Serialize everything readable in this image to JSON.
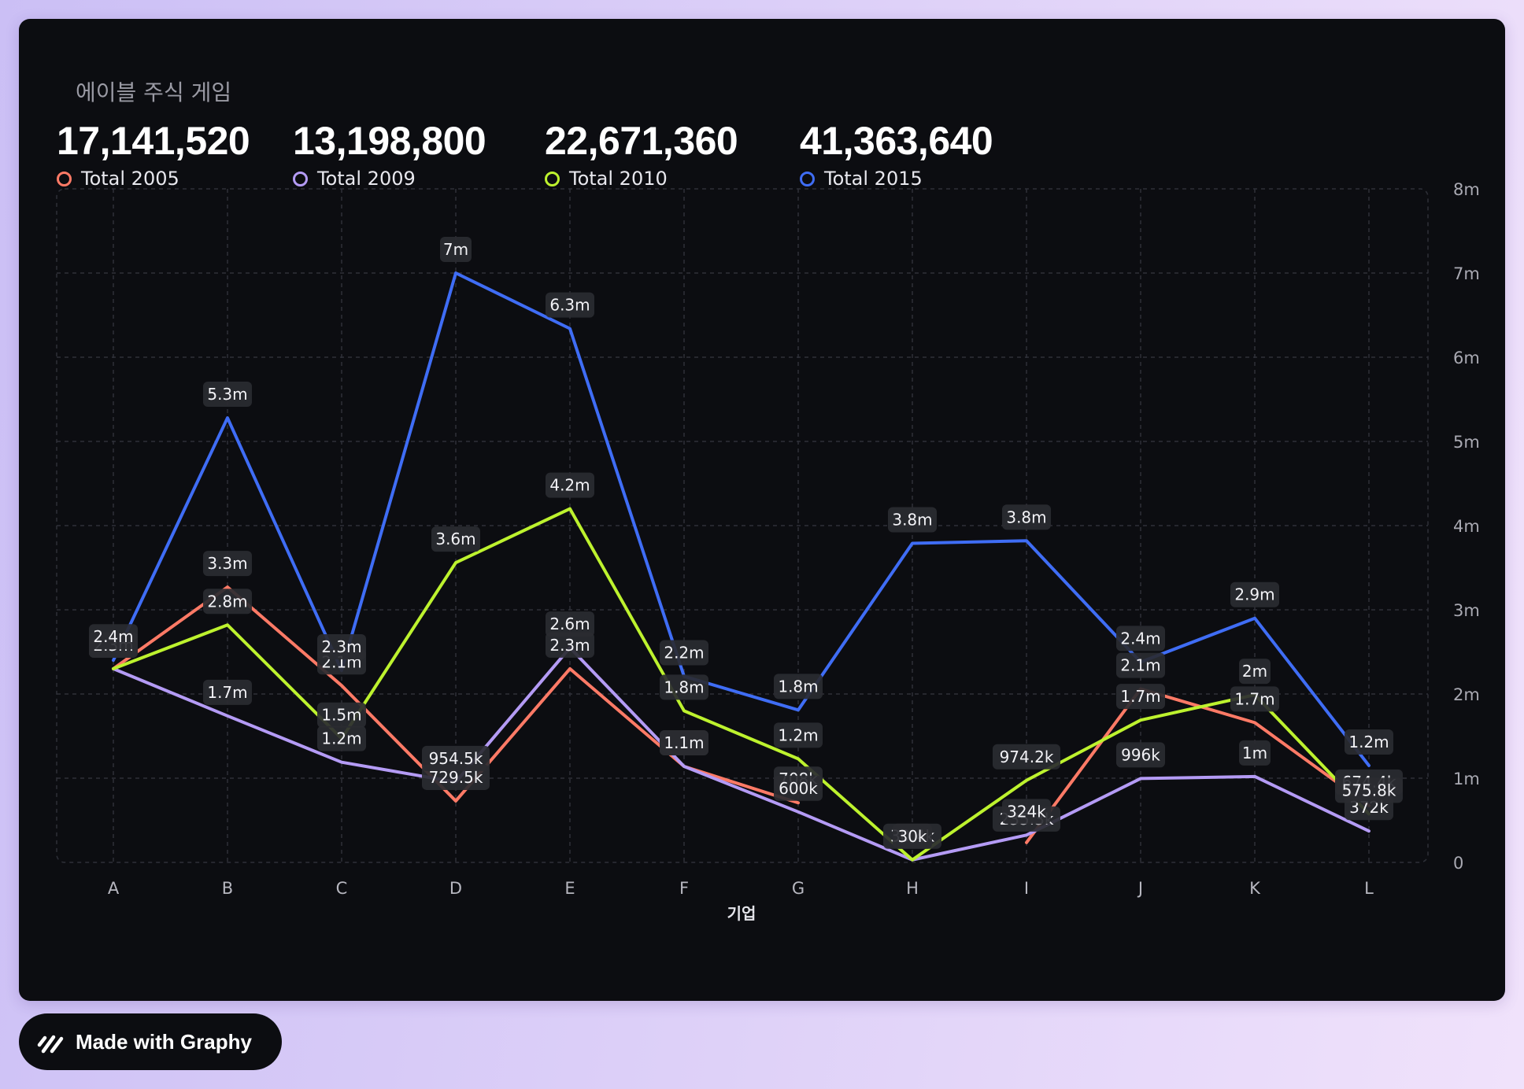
{
  "title": "에이블 주식 게임",
  "totals": [
    {
      "value": "17,141,520",
      "label": "Total 2005",
      "color": "#ff7a66"
    },
    {
      "value": "13,198,800",
      "label": "Total 2009",
      "color": "#b49bf5"
    },
    {
      "value": "22,671,360",
      "label": "Total 2010",
      "color": "#bdf22e"
    },
    {
      "value": "41,363,640",
      "label": "Total 2015",
      "color": "#3f6df5"
    }
  ],
  "badge": {
    "label": "Made with Graphy",
    "icon": "graphy-logo-icon"
  },
  "chart_data": {
    "type": "line",
    "xlabel": "기업",
    "ylabel": "",
    "ylim": [
      0,
      8000000
    ],
    "y_ticks": [
      "0",
      "1m",
      "2m",
      "3m",
      "4m",
      "5m",
      "6m",
      "7m",
      "8m"
    ],
    "y_axis_position": "right",
    "grid": true,
    "categories": [
      "A",
      "B",
      "C",
      "D",
      "E",
      "F",
      "G",
      "H",
      "I",
      "J",
      "K",
      "L"
    ],
    "series": [
      {
        "name": "Total 2005",
        "color": "#ff7a66",
        "values": [
          2300000,
          3270000,
          2100000,
          729500,
          2300000,
          1140000,
          708000,
          null,
          235300,
          2060000,
          1660000,
          674400
        ],
        "labels": [
          "2.3m",
          "3.3m",
          "2.1m",
          "729.5k",
          "2.3m",
          "1.1m",
          "708k",
          "",
          "235.3k",
          "2.1m",
          "1.7m",
          "674.4k"
        ]
      },
      {
        "name": "Total 2009",
        "color": "#b49bf5",
        "values": [
          2300000,
          1740000,
          1190000,
          954500,
          2550000,
          1140000,
          600000,
          30400,
          324000,
          996000,
          1020000,
          372000
        ],
        "labels": [
          "2.3m",
          "1.7m",
          "1.2m",
          "954.5k",
          "2.6m",
          "1.1m",
          "600k",
          "30.4k",
          "324k",
          "996k",
          "1m",
          "372k"
        ]
      },
      {
        "name": "Total 2010",
        "color": "#bdf22e",
        "values": [
          2300000,
          2820000,
          1470000,
          3560000,
          4200000,
          1800000,
          1230000,
          30000,
          974200,
          1690000,
          1990000,
          575800
        ],
        "labels": [
          "2.3m",
          "2.8m",
          "1.5m",
          "3.6m",
          "4.2m",
          "1.8m",
          "1.2m",
          "30k",
          "974.2k",
          "1.7m",
          "2m",
          "575.8k"
        ]
      },
      {
        "name": "Total 2015",
        "color": "#3f6df5",
        "values": [
          2400000,
          5280000,
          2280000,
          7000000,
          6340000,
          2210000,
          1810000,
          3790000,
          3820000,
          2380000,
          2900000,
          1150000
        ],
        "labels": [
          "2.4m",
          "5.3m",
          "2.3m",
          "7m",
          "6.3m",
          "2.2m",
          "1.8m",
          "3.8m",
          "3.8m",
          "2.4m",
          "2.9m",
          "1.2m"
        ]
      }
    ]
  }
}
